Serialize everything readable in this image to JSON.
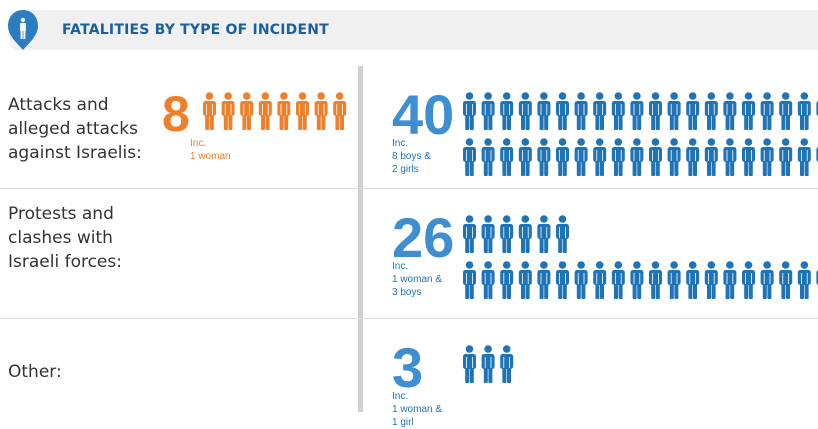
{
  "header": {
    "title": "FATALITIES BY TYPE OF INCIDENT"
  },
  "rows": [
    {
      "label": "Attacks and\nalleged attacks\nagainst Israelis:",
      "groups": [
        {
          "value": 8,
          "note": "Inc.\n1 woman",
          "color": "#f07f2a"
        },
        {
          "value": 40,
          "note": "Inc.\n8 boys &\n2 girls",
          "color": "#1f73b7"
        }
      ]
    },
    {
      "label": "Protests and\nclashes with\nIsraeli forces:",
      "groups": [
        {
          "value": 26,
          "note": "Inc.\n1 woman &\n3 boys",
          "color": "#1f73b7"
        }
      ]
    },
    {
      "label": "Other:",
      "groups": [
        {
          "value": 3,
          "note": "Inc.\n1 woman &\n1 girl",
          "color": "#1f73b7"
        }
      ]
    }
  ]
}
